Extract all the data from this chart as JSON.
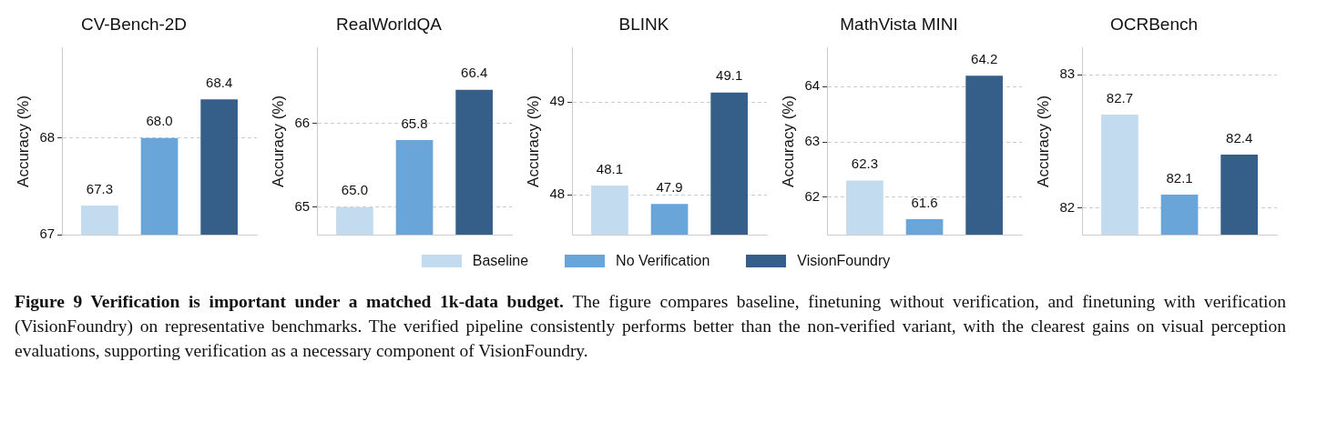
{
  "chart_data": [
    {
      "type": "bar",
      "title": "CV-Bench-2D",
      "ylabel": "Accuracy (%)",
      "categories": [
        null
      ],
      "ylim": [
        67,
        68.93
      ],
      "yticks": [
        67,
        68
      ],
      "grid": "y",
      "tick_labels": "y",
      "legend": "bottom",
      "series": [
        {
          "name": "Baseline",
          "color": "#c3dbef",
          "values": [
            67.3
          ],
          "value_labels": [
            "67.3"
          ]
        },
        {
          "name": "No Verification",
          "color": "#6aa5da",
          "values": [
            68.0
          ],
          "value_labels": [
            "68.0"
          ]
        },
        {
          "name": "VisionFoundry",
          "color": "#355f88",
          "values": [
            68.4
          ],
          "value_labels": [
            "68.4"
          ]
        }
      ],
      "annotations": [
        "Figure 9 Verification is important under a matched 1k-data budget.",
        "The figure compares baseline, finetuning without verification, and finetuning with verification (VisionFoundry) on representative benchmarks. The verified pipeline consistently performs better than the non-verified variant, with the clearest gains on visual perception evaluations, supporting verification as a necessary component of VisionFoundry."
      ]
    },
    {
      "type": "bar",
      "title": "RealWorldQA",
      "ylabel": "Accuracy (%)",
      "categories": [
        null
      ],
      "ylim": [
        64.67,
        66.9
      ],
      "yticks": [
        65,
        66
      ],
      "grid": "y",
      "tick_labels": "y",
      "series": [
        {
          "color": "#c3dbef",
          "values": [
            65.0
          ],
          "value_labels": [
            "65.0"
          ]
        },
        {
          "color": "#6aa5da",
          "values": [
            65.8
          ],
          "value_labels": [
            "65.8"
          ]
        },
        {
          "color": "#355f88",
          "values": [
            66.4
          ],
          "value_labels": [
            "66.4"
          ]
        }
      ]
    },
    {
      "type": "bar",
      "title": "BLINK",
      "ylabel": "Accuracy (%)",
      "categories": [
        null
      ],
      "ylim": [
        47.57,
        49.58
      ],
      "yticks": [
        48,
        49
      ],
      "grid": "y",
      "tick_labels": "y",
      "series": [
        {
          "color": "#c3dbef",
          "values": [
            48.1
          ],
          "value_labels": [
            "48.1"
          ]
        },
        {
          "color": "#6aa5da",
          "values": [
            47.9
          ],
          "value_labels": [
            "47.9"
          ]
        },
        {
          "color": "#355f88",
          "values": [
            49.1
          ],
          "value_labels": [
            "49.1"
          ]
        }
      ]
    },
    {
      "type": "bar",
      "title": "MathVista MINI",
      "ylabel": "Accuracy (%)",
      "categories": [
        null
      ],
      "ylim": [
        61.32,
        64.7
      ],
      "yticks": [
        62,
        63,
        64
      ],
      "grid": "y",
      "tick_labels": "y",
      "series": [
        {
          "color": "#c3dbef",
          "values": [
            62.3
          ],
          "value_labels": [
            "62.3"
          ]
        },
        {
          "color": "#6aa5da",
          "values": [
            61.6
          ],
          "value_labels": [
            "61.6"
          ]
        },
        {
          "color": "#355f88",
          "values": [
            64.2
          ],
          "value_labels": [
            "64.2"
          ]
        }
      ]
    },
    {
      "type": "bar",
      "title": "OCRBench",
      "ylabel": "Accuracy (%)",
      "categories": [
        null
      ],
      "ylim": [
        81.8,
        83.2
      ],
      "yticks": [
        82,
        83
      ],
      "grid": "y",
      "tick_labels": "y",
      "series": [
        {
          "color": "#c3dbef",
          "values": [
            82.7
          ],
          "value_labels": [
            "82.7"
          ]
        },
        {
          "color": "#6aa5da",
          "values": [
            82.1
          ],
          "value_labels": [
            "82.1"
          ]
        },
        {
          "color": "#355f88",
          "values": [
            82.4
          ],
          "value_labels": [
            "82.4"
          ]
        }
      ]
    }
  ]
}
